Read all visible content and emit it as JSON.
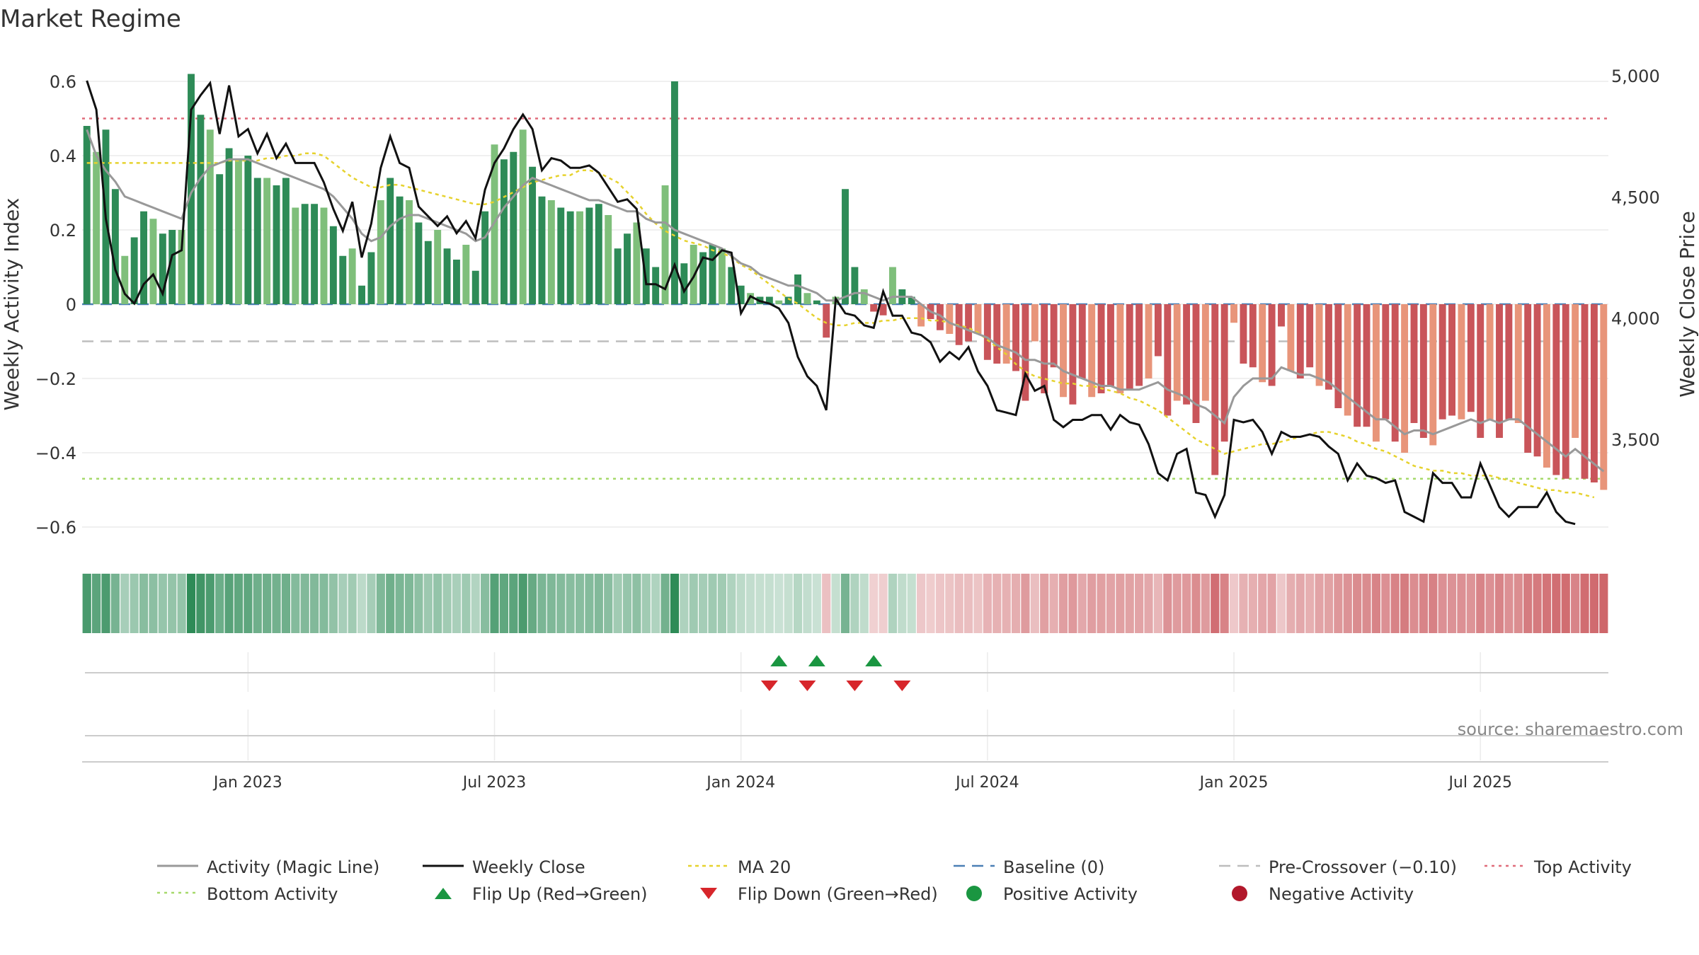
{
  "chart_data": {
    "type": "bar",
    "title": "Market Regime",
    "source": "source: sharemaestro.com",
    "ylabel_left": "Weekly Activity Index",
    "ylabel_right": "Weekly Close Price",
    "ylim_left": [
      -0.66,
      0.66
    ],
    "ylim_right": [
      3100,
      5050
    ],
    "left_ticks": [
      {
        "v": 0.6,
        "label": "0.6"
      },
      {
        "v": 0.4,
        "label": "0.4"
      },
      {
        "v": 0.2,
        "label": "0.2"
      },
      {
        "v": 0,
        "label": "0"
      },
      {
        "v": -0.2,
        "label": "−0.2"
      },
      {
        "v": -0.4,
        "label": "−0.4"
      },
      {
        "v": -0.6,
        "label": "−0.6"
      }
    ],
    "right_ticks": [
      {
        "v": 5000,
        "label": "5,000"
      },
      {
        "v": 4500,
        "label": "4,500"
      },
      {
        "v": 4000,
        "label": "4,000"
      },
      {
        "v": 3500,
        "label": "3,500"
      }
    ],
    "x_ticks": [
      {
        "week": 17,
        "label": "Jan 2023"
      },
      {
        "week": 43,
        "label": "Jul 2023"
      },
      {
        "week": 69,
        "label": "Jan 2024"
      },
      {
        "week": 95,
        "label": "Jul 2024"
      },
      {
        "week": 121,
        "label": "Jan 2025"
      },
      {
        "week": 147,
        "label": "Jul 2025"
      }
    ],
    "grid": true,
    "legend_position": "bottom",
    "levels": {
      "baseline": 0,
      "pre_crossover": -0.1,
      "top": 0.5,
      "bottom": -0.47
    },
    "activity": [
      0.48,
      0.41,
      0.47,
      0.31,
      0.13,
      0.18,
      0.25,
      0.23,
      0.19,
      0.2,
      0.2,
      0.62,
      0.51,
      0.47,
      0.35,
      0.42,
      0.39,
      0.4,
      0.34,
      0.34,
      0.32,
      0.34,
      0.26,
      0.27,
      0.27,
      0.26,
      0.21,
      0.13,
      0.15,
      0.05,
      0.14,
      0.28,
      0.34,
      0.29,
      0.28,
      0.22,
      0.17,
      0.2,
      0.15,
      0.12,
      0.16,
      0.09,
      0.25,
      0.43,
      0.39,
      0.41,
      0.47,
      0.37,
      0.29,
      0.28,
      0.26,
      0.25,
      0.25,
      0.26,
      0.27,
      0.24,
      0.15,
      0.19,
      0.22,
      0.15,
      0.1,
      0.32,
      0.6,
      0.11,
      0.16,
      0.14,
      0.16,
      0.15,
      0.1,
      0.05,
      0.03,
      0.02,
      0.02,
      0.01,
      0.02,
      0.08,
      0.03,
      0.01,
      -0.09,
      0.02,
      0.31,
      0.1,
      0.04,
      -0.02,
      -0.03,
      0.1,
      0.04,
      0.02,
      -0.06,
      -0.04,
      -0.07,
      -0.08,
      -0.11,
      -0.1,
      -0.08,
      -0.15,
      -0.16,
      -0.16,
      -0.18,
      -0.26,
      -0.1,
      -0.24,
      -0.17,
      -0.25,
      -0.27,
      -0.2,
      -0.25,
      -0.24,
      -0.22,
      -0.24,
      -0.23,
      -0.22,
      -0.2,
      -0.14,
      -0.3,
      -0.26,
      -0.27,
      -0.32,
      -0.26,
      -0.46,
      -0.37,
      -0.05,
      -0.16,
      -0.17,
      -0.21,
      -0.22,
      -0.06,
      -0.18,
      -0.2,
      -0.17,
      -0.22,
      -0.23,
      -0.28,
      -0.3,
      -0.33,
      -0.33,
      -0.37,
      -0.31,
      -0.37,
      -0.4,
      -0.32,
      -0.36,
      -0.38,
      -0.31,
      -0.3,
      -0.31,
      -0.29,
      -0.36,
      -0.31,
      -0.36,
      -0.31,
      -0.32,
      -0.4,
      -0.41,
      -0.44,
      -0.46,
      -0.47,
      -0.36,
      -0.47,
      -0.48,
      -0.5
    ],
    "activity_magic_line": [
      0.47,
      0.4,
      0.36,
      0.33,
      0.29,
      0.28,
      0.27,
      0.26,
      0.25,
      0.24,
      0.23,
      0.3,
      0.34,
      0.37,
      0.38,
      0.39,
      0.39,
      0.39,
      0.38,
      0.37,
      0.36,
      0.35,
      0.34,
      0.33,
      0.32,
      0.31,
      0.29,
      0.26,
      0.23,
      0.19,
      0.17,
      0.18,
      0.21,
      0.23,
      0.24,
      0.24,
      0.23,
      0.22,
      0.21,
      0.2,
      0.19,
      0.17,
      0.18,
      0.22,
      0.26,
      0.29,
      0.32,
      0.34,
      0.33,
      0.32,
      0.31,
      0.3,
      0.29,
      0.28,
      0.28,
      0.27,
      0.26,
      0.25,
      0.25,
      0.23,
      0.22,
      0.22,
      0.2,
      0.19,
      0.18,
      0.17,
      0.16,
      0.15,
      0.13,
      0.11,
      0.1,
      0.08,
      0.07,
      0.06,
      0.05,
      0.05,
      0.04,
      0.03,
      0.01,
      0.01,
      0.02,
      0.03,
      0.03,
      0.02,
      0.01,
      0.02,
      0.02,
      0.02,
      0.0,
      -0.02,
      -0.03,
      -0.05,
      -0.06,
      -0.07,
      -0.08,
      -0.09,
      -0.11,
      -0.12,
      -0.13,
      -0.15,
      -0.15,
      -0.16,
      -0.16,
      -0.18,
      -0.19,
      -0.2,
      -0.21,
      -0.22,
      -0.22,
      -0.23,
      -0.23,
      -0.23,
      -0.22,
      -0.21,
      -0.23,
      -0.24,
      -0.25,
      -0.27,
      -0.28,
      -0.3,
      -0.32,
      -0.25,
      -0.22,
      -0.2,
      -0.2,
      -0.2,
      -0.17,
      -0.18,
      -0.19,
      -0.19,
      -0.2,
      -0.21,
      -0.23,
      -0.25,
      -0.27,
      -0.29,
      -0.31,
      -0.31,
      -0.33,
      -0.35,
      -0.34,
      -0.34,
      -0.35,
      -0.34,
      -0.33,
      -0.32,
      -0.31,
      -0.32,
      -0.31,
      -0.32,
      -0.31,
      -0.31,
      -0.33,
      -0.35,
      -0.37,
      -0.39,
      -0.41,
      -0.39,
      -0.41,
      -0.43,
      -0.45
    ],
    "weekly_close": [
      5000,
      4880,
      4430,
      4220,
      4120,
      4080,
      4160,
      4200,
      4120,
      4280,
      4300,
      4880,
      4940,
      4990,
      4780,
      4980,
      4770,
      4800,
      4700,
      4780,
      4680,
      4740,
      4660,
      4660,
      4660,
      4580,
      4470,
      4380,
      4500,
      4270,
      4410,
      4640,
      4770,
      4660,
      4640,
      4480,
      4440,
      4400,
      4440,
      4370,
      4420,
      4350,
      4550,
      4660,
      4720,
      4800,
      4860,
      4800,
      4630,
      4680,
      4670,
      4640,
      4640,
      4650,
      4620,
      4560,
      4500,
      4510,
      4470,
      4160,
      4160,
      4140,
      4240,
      4130,
      4190,
      4270,
      4260,
      4300,
      4290,
      4040,
      4110,
      4090,
      4080,
      4060,
      4000,
      3860,
      3780,
      3740,
      3640,
      4100,
      4040,
      4030,
      3990,
      3980,
      4130,
      4030,
      4030,
      3960,
      3950,
      3920,
      3840,
      3880,
      3850,
      3900,
      3800,
      3740,
      3640,
      3630,
      3620,
      3790,
      3720,
      3740,
      3600,
      3570,
      3600,
      3600,
      3620,
      3620,
      3560,
      3620,
      3590,
      3580,
      3500,
      3380,
      3350,
      3460,
      3480,
      3300,
      3290,
      3200,
      3290,
      3600,
      3590,
      3600,
      3550,
      3460,
      3550,
      3530,
      3530,
      3540,
      3530,
      3490,
      3460,
      3350,
      3420,
      3370,
      3360,
      3340,
      3350,
      3220,
      3200,
      3180,
      3380,
      3340,
      3340,
      3280,
      3280,
      3420,
      3330,
      3240,
      3200,
      3240,
      3240,
      3240,
      3300,
      3220,
      3180,
      3170
    ],
    "ma20": [
      4660,
      4660,
      4660,
      4660,
      4660,
      4660,
      4660,
      4660,
      4660,
      4660,
      4660,
      4660,
      4660,
      4660,
      4660,
      4670,
      4670,
      4670,
      4670,
      4680,
      4680,
      4690,
      4690,
      4700,
      4700,
      4690,
      4660,
      4630,
      4600,
      4580,
      4560,
      4560,
      4570,
      4570,
      4560,
      4550,
      4540,
      4530,
      4520,
      4510,
      4500,
      4490,
      4490,
      4500,
      4520,
      4540,
      4560,
      4580,
      4590,
      4600,
      4610,
      4610,
      4630,
      4630,
      4620,
      4600,
      4580,
      4540,
      4500,
      4450,
      4410,
      4380,
      4360,
      4340,
      4330,
      4320,
      4300,
      4290,
      4270,
      4240,
      4220,
      4190,
      4160,
      4130,
      4100,
      4080,
      4050,
      4020,
      4000,
      3990,
      3990,
      4000,
      4000,
      4000,
      4010,
      4010,
      4020,
      4020,
      4020,
      4010,
      4010,
      4000,
      3990,
      3980,
      3960,
      3930,
      3900,
      3870,
      3830,
      3800,
      3780,
      3770,
      3760,
      3750,
      3750,
      3740,
      3740,
      3730,
      3720,
      3710,
      3690,
      3680,
      3660,
      3640,
      3610,
      3580,
      3550,
      3520,
      3500,
      3480,
      3460,
      3470,
      3480,
      3490,
      3500,
      3500,
      3510,
      3520,
      3530,
      3540,
      3550,
      3550,
      3540,
      3530,
      3510,
      3500,
      3480,
      3470,
      3450,
      3430,
      3410,
      3400,
      3390,
      3390,
      3380,
      3380,
      3370,
      3370,
      3370,
      3360,
      3350,
      3340,
      3330,
      3320,
      3310,
      3310,
      3300,
      3300,
      3290,
      3280
    ],
    "flip_up_weeks": [
      73,
      77,
      83
    ],
    "flip_down_weeks": [
      72,
      76,
      81,
      86
    ],
    "legend": [
      {
        "key": "magic",
        "label": "Activity (Magic Line)"
      },
      {
        "key": "close",
        "label": "Weekly Close"
      },
      {
        "key": "ma20",
        "label": "MA 20"
      },
      {
        "key": "baseline",
        "label": "Baseline (0)"
      },
      {
        "key": "precross",
        "label": "Pre-Crossover (−0.10)"
      },
      {
        "key": "top",
        "label": "Top Activity"
      },
      {
        "key": "bottom",
        "label": "Bottom Activity"
      },
      {
        "key": "flipup",
        "label": "Flip Up (Red→Green)"
      },
      {
        "key": "flipdown",
        "label": "Flip Down (Green→Red)"
      },
      {
        "key": "pos",
        "label": "Positive Activity"
      },
      {
        "key": "neg",
        "label": "Negative Activity"
      }
    ],
    "colors": {
      "pos_strong": "#2e8b57",
      "pos_light": "#7fbf7b",
      "neg_strong": "#c9555a",
      "neg_light": "#e8957a",
      "magic": "#999999",
      "close": "#111111",
      "ma20": "#e6d22e",
      "baseline": "#4a7fb5",
      "precross": "#bdbdbd",
      "top": "#e06c7a",
      "bottom": "#a6d96a",
      "flipup": "#1a9641",
      "flipdown": "#d7262b",
      "pos_dot": "#1a9641",
      "neg_dot": "#b2182b",
      "grid": "#ebebeb"
    }
  }
}
